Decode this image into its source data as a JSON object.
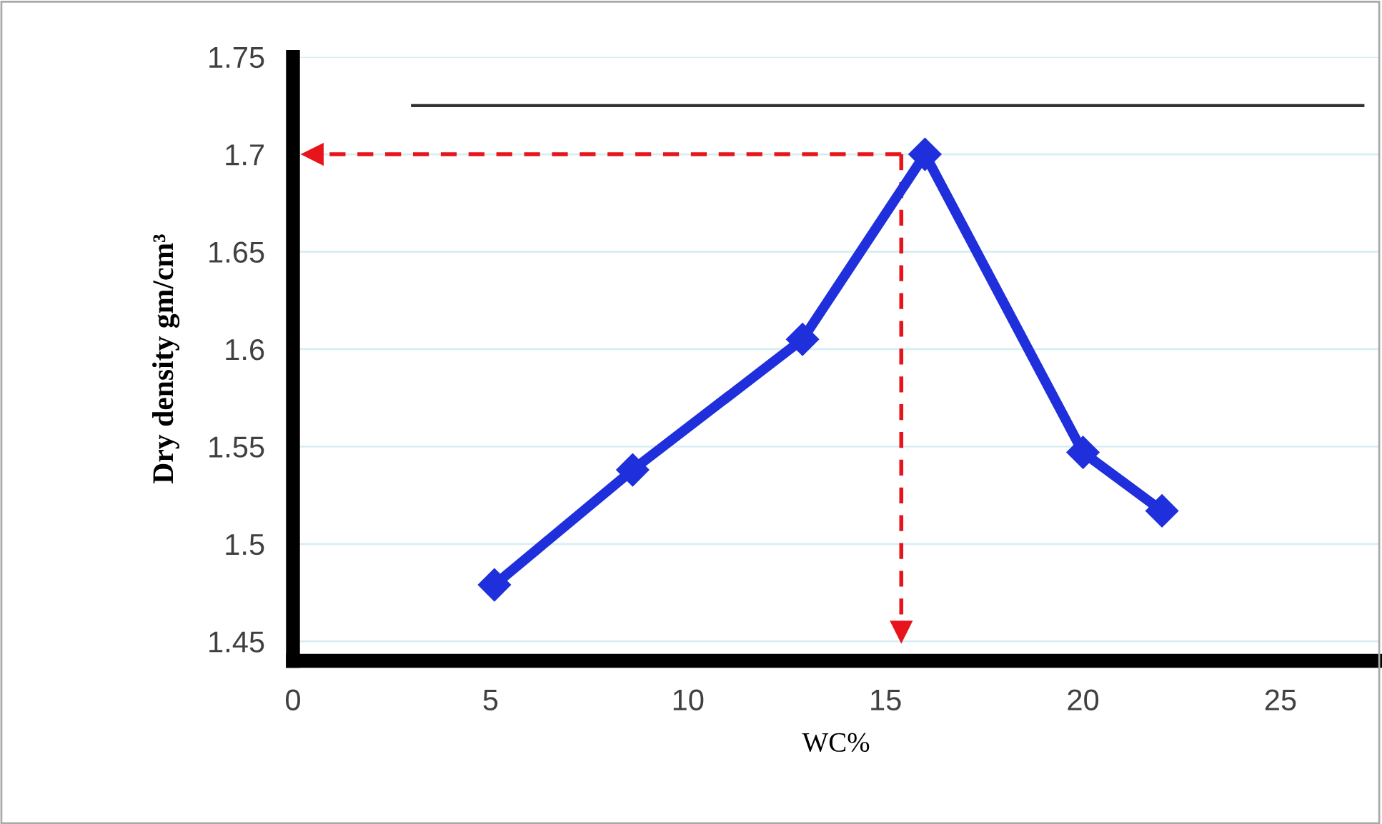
{
  "chart_data": {
    "type": "line",
    "xlabel": "WC%",
    "ylabel": "Dry density gm/cm³",
    "series": [
      {
        "color": "#1f2fdc",
        "x": [
          5.1,
          8.6,
          12.9,
          16.0,
          20.0,
          22.0
        ],
        "values": [
          1.479,
          1.538,
          1.605,
          1.7,
          1.547,
          1.517
        ]
      }
    ],
    "xlim": [
      0,
      27.5
    ],
    "xticks": [
      0,
      5,
      10,
      15,
      20,
      25
    ],
    "ylim": [
      1.44,
      1.75
    ],
    "yticks": [
      1.45,
      1.5,
      1.55,
      1.6,
      1.65,
      1.7,
      1.75
    ],
    "grid": "y",
    "marker": "diamond",
    "line_style": "solid",
    "ref_lines": [
      {
        "axis": "y",
        "value": 1.7,
        "color": "#e8141c",
        "line_style": "dashed"
      },
      {
        "axis": "x",
        "value": 15.4,
        "color": "#e8141c",
        "line_style": "dashed"
      },
      {
        "axis": "y",
        "value": 1.725,
        "color": "#333333",
        "line_style": "solid"
      }
    ]
  }
}
